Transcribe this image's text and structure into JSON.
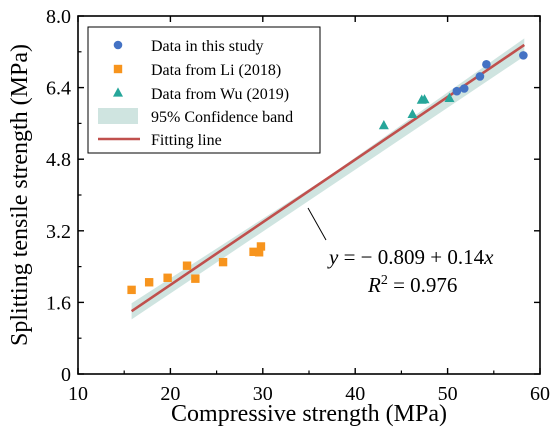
{
  "chart_data": {
    "type": "scatter",
    "xlabel": "Compressive strength (MPa)",
    "ylabel": "Splitting tensile strength (MPa)",
    "xlim": [
      10,
      60
    ],
    "ylim": [
      0,
      8.0
    ],
    "x_ticks": [
      "10",
      "20",
      "30",
      "40",
      "50",
      "60"
    ],
    "y_ticks": [
      "0",
      "1.6",
      "3.2",
      "4.8",
      "6.4",
      "8.0"
    ],
    "grid": false,
    "legend_position": "top-left",
    "series": [
      {
        "name": "Data in this study",
        "marker": "circle",
        "color": "#4472C4",
        "points": [
          [
            51.0,
            6.32
          ],
          [
            51.8,
            6.38
          ],
          [
            53.5,
            6.65
          ],
          [
            54.2,
            6.92
          ],
          [
            58.2,
            7.12
          ]
        ]
      },
      {
        "name": "Data from Li (2018)",
        "marker": "square",
        "color": "#F7941D",
        "points": [
          [
            15.8,
            1.88
          ],
          [
            17.7,
            2.05
          ],
          [
            19.7,
            2.15
          ],
          [
            21.8,
            2.42
          ],
          [
            22.7,
            2.13
          ],
          [
            25.7,
            2.5
          ],
          [
            29.0,
            2.73
          ],
          [
            29.6,
            2.72
          ],
          [
            29.8,
            2.85
          ]
        ]
      },
      {
        "name": "Data from Wu (2019)",
        "marker": "triangle",
        "color": "#26A69A",
        "points": [
          [
            43.1,
            5.55
          ],
          [
            46.2,
            5.8
          ],
          [
            47.2,
            6.12
          ],
          [
            47.5,
            6.13
          ],
          [
            50.2,
            6.16
          ]
        ]
      }
    ],
    "confidence_band": {
      "name": "95% Confidence band",
      "color": "#CFE4E0",
      "lower": [
        [
          15.8,
          1.22
        ],
        [
          37.0,
          4.15
        ],
        [
          58.3,
          7.1
        ]
      ],
      "upper": [
        [
          15.8,
          1.58
        ],
        [
          37.0,
          4.4
        ],
        [
          58.3,
          7.5
        ]
      ]
    },
    "fit": {
      "name": "Fitting line",
      "color": "#C0504D",
      "intercept": -0.809,
      "slope": 0.14,
      "x_range": [
        15.8,
        58.3
      ]
    },
    "annotation": {
      "equation_line1": "y = − 0.809 + 0.14x",
      "equation_line2": "R2 = 0.976"
    }
  }
}
